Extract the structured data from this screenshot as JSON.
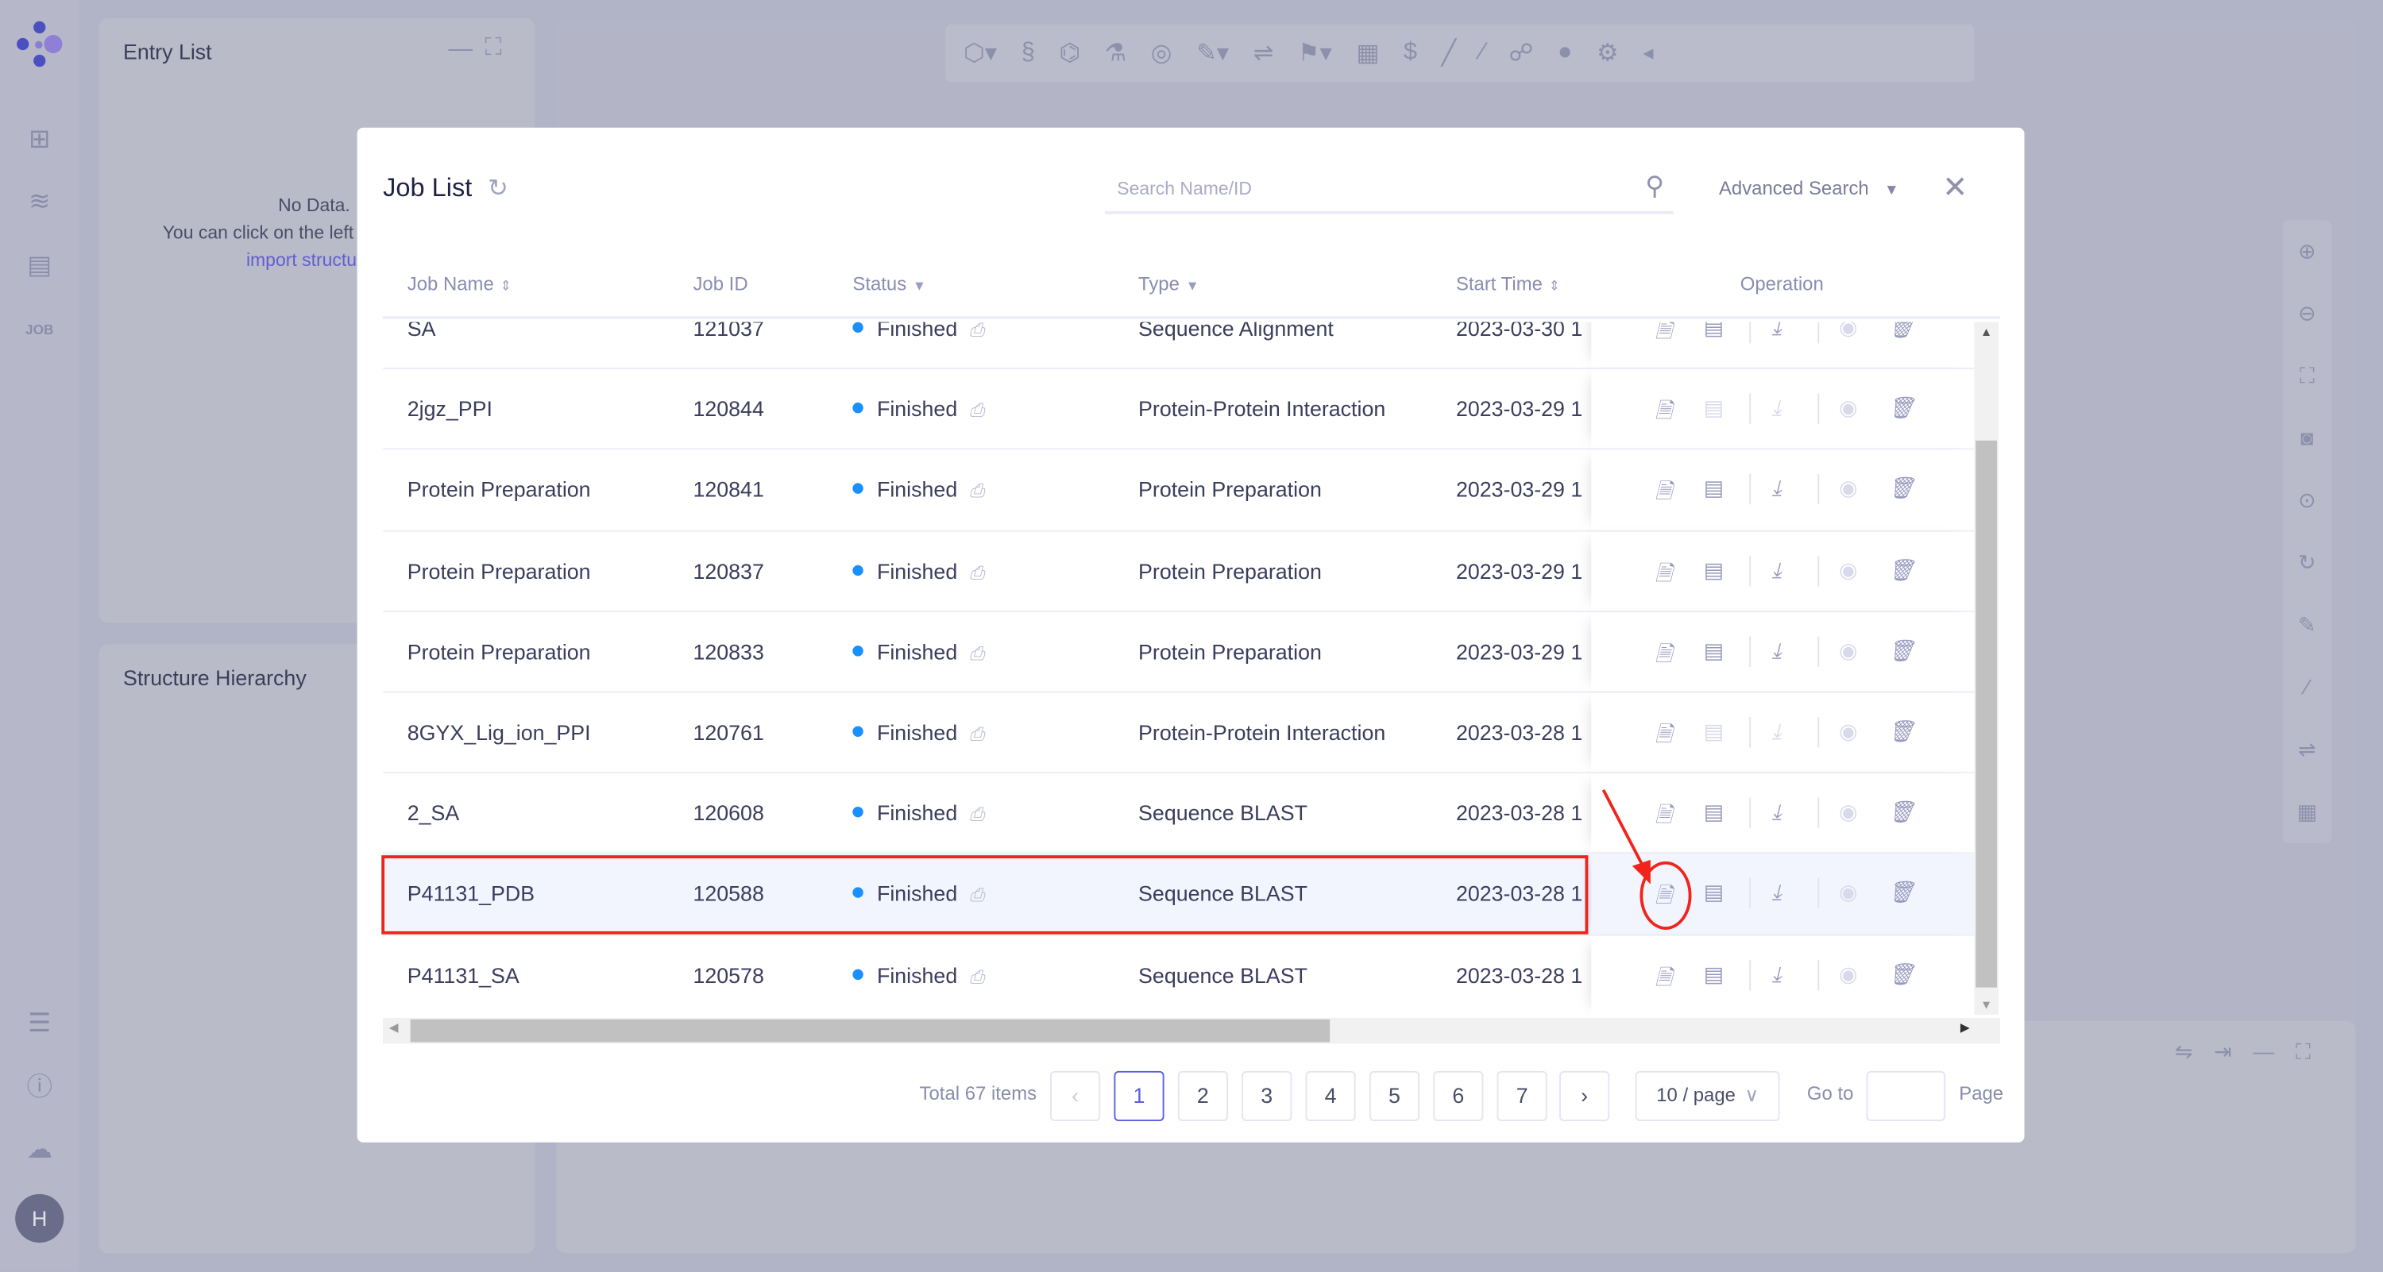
{
  "app": {
    "nav_icons": [
      "new-folder-icon",
      "layers-flask-icon",
      "layout-icon",
      "job-icon"
    ],
    "bottom_icons": [
      "list-icon",
      "help-icon",
      "cloud-icon"
    ],
    "avatar": "H"
  },
  "entry_list": {
    "title": "Entry List",
    "empty_line1": "No Data.",
    "empty_line2": "You can click on the left",
    "empty_link": "import structu"
  },
  "structure_hierarchy": {
    "title": "Structure Hierarchy"
  },
  "modal": {
    "title": "Job List",
    "search_placeholder": "Search Name/ID",
    "advanced_search": "Advanced Search",
    "columns": {
      "name": "Job Name",
      "id": "Job ID",
      "status": "Status",
      "type": "Type",
      "start": "Start Time",
      "operation": "Operation"
    },
    "rows": [
      {
        "name": "SA",
        "id": "121037",
        "status": "Finished",
        "type": "Sequence Alignment",
        "start": "2023-03-30 1",
        "ops_disabled": false
      },
      {
        "name": "2jgz_PPI",
        "id": "120844",
        "status": "Finished",
        "type": "Protein-Protein Interaction",
        "start": "2023-03-29 1",
        "ops_disabled": true
      },
      {
        "name": "Protein Preparation",
        "id": "120841",
        "status": "Finished",
        "type": "Protein Preparation",
        "start": "2023-03-29 1",
        "ops_disabled": false
      },
      {
        "name": "Protein Preparation",
        "id": "120837",
        "status": "Finished",
        "type": "Protein Preparation",
        "start": "2023-03-29 1",
        "ops_disabled": false
      },
      {
        "name": "Protein Preparation",
        "id": "120833",
        "status": "Finished",
        "type": "Protein Preparation",
        "start": "2023-03-29 1",
        "ops_disabled": false
      },
      {
        "name": "8GYX_Lig_ion_PPI",
        "id": "120761",
        "status": "Finished",
        "type": "Protein-Protein Interaction",
        "start": "2023-03-28 1",
        "ops_disabled": true
      },
      {
        "name": "2_SA",
        "id": "120608",
        "status": "Finished",
        "type": "Sequence BLAST",
        "start": "2023-03-28 1",
        "ops_disabled": false
      },
      {
        "name": "P41131_PDB",
        "id": "120588",
        "status": "Finished",
        "type": "Sequence BLAST",
        "start": "2023-03-28 1",
        "ops_disabled": false,
        "selected": true
      },
      {
        "name": "P41131_SA",
        "id": "120578",
        "status": "Finished",
        "type": "Sequence BLAST",
        "start": "2023-03-28 1",
        "ops_disabled": false
      }
    ],
    "status_color": "#1890ff",
    "pagination": {
      "total": "Total 67 items",
      "pages": [
        "1",
        "2",
        "3",
        "4",
        "5",
        "6",
        "7"
      ],
      "current": "1",
      "page_size": "10 / page",
      "goto": "Go to",
      "page": "Page"
    }
  },
  "annotation_color": "#f0241b"
}
